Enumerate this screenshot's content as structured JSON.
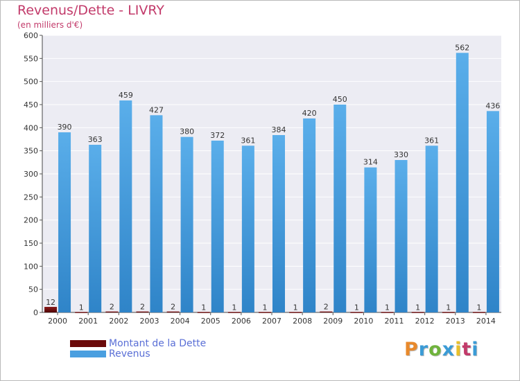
{
  "chart_data": {
    "type": "bar",
    "title": "Revenus/Dette - LIVRY",
    "subtitle": "(en milliers d'€)",
    "categories": [
      "2000",
      "2001",
      "2002",
      "2003",
      "2004",
      "2005",
      "2006",
      "2007",
      "2008",
      "2009",
      "2010",
      "2011",
      "2012",
      "2013",
      "2014"
    ],
    "series": [
      {
        "name": "Montant de la Dette",
        "color": "#6b0a0a",
        "values": [
          12,
          1,
          2,
          2,
          2,
          1,
          1,
          1,
          1,
          2,
          1,
          1,
          1,
          1,
          1
        ]
      },
      {
        "name": "Revenus",
        "color": "#4a9fe0",
        "values": [
          390,
          363,
          459,
          427,
          380,
          372,
          361,
          384,
          420,
          450,
          314,
          330,
          361,
          562,
          436
        ]
      }
    ],
    "ylim": [
      0,
      600
    ],
    "yticks": [
      0,
      50,
      100,
      150,
      200,
      250,
      300,
      350,
      400,
      450,
      500,
      550,
      600
    ],
    "grid": true,
    "legend_position": "bottom-left"
  },
  "logo": {
    "text": "Proxiti",
    "colors": [
      "#e8892b",
      "#3a9bd6",
      "#6fb33c",
      "#3a9bd6",
      "#e8c02b",
      "#c23a6a",
      "#3a9bd6"
    ]
  }
}
